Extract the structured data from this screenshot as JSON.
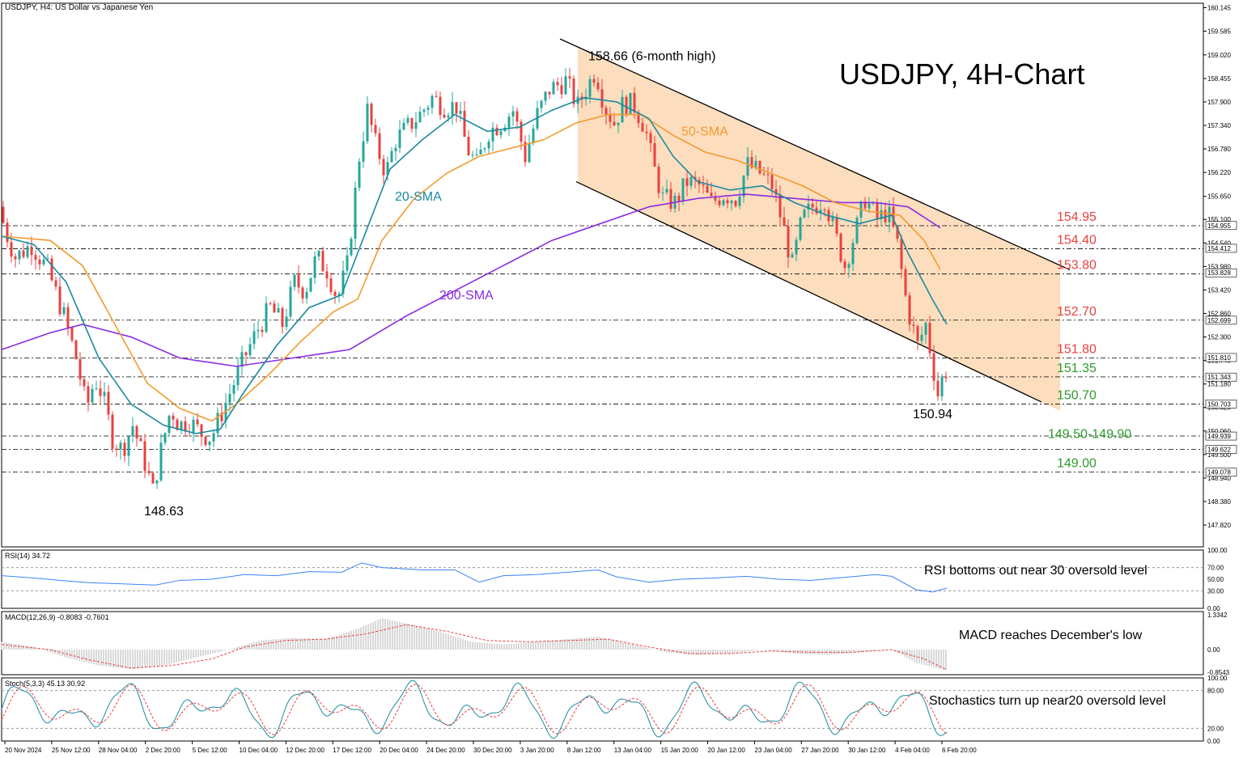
{
  "header": {
    "symbol_info": "USDJPY, H4:  US Dollar vs Japanese Yen",
    "big_title": "USDJPY, 4H-Chart"
  },
  "colors": {
    "bull": "#26a69a",
    "bear": "#e8413f",
    "sma20": "#1b8aa0",
    "sma50": "#f39a2e",
    "sma200": "#8a2be2",
    "channel_fill": "#fbd7b2",
    "level_red": "#e8413f",
    "level_green": "#2e9b2e",
    "rsi": "#3b82f6",
    "macd_signal": "#e8413f",
    "macd_hist": "#b0b0b0",
    "stoch_k": "#1b8aa0",
    "stoch_d": "#e8413f"
  },
  "chart_data": {
    "type": "candlestick",
    "price_axis": {
      "ylim": [
        147.3,
        160.25
      ],
      "ticks": [
        "160.145",
        "159.585",
        "159.020",
        "158.455",
        "157.900",
        "157.340",
        "156.780",
        "156.220",
        "155.650",
        "155.100",
        "154.540",
        "153.980",
        "153.420",
        "152.860",
        "152.300",
        "151.740",
        "151.180",
        "150.620",
        "150.060",
        "149.500",
        "148.940",
        "148.380",
        "147.820"
      ],
      "level_tags": [
        {
          "value": 154.955,
          "label": "154.955"
        },
        {
          "value": 154.412,
          "label": "154.412"
        },
        {
          "value": 153.828,
          "label": "153.828"
        },
        {
          "value": 152.699,
          "label": "152.699"
        },
        {
          "value": 151.81,
          "label": "151.810"
        },
        {
          "value": 151.343,
          "label": "151.343"
        },
        {
          "value": 150.703,
          "label": "150.703"
        },
        {
          "value": 149.939,
          "label": "149.939"
        },
        {
          "value": 149.622,
          "label": "149.622"
        },
        {
          "value": 149.078,
          "label": "149.078"
        }
      ]
    },
    "x_axis_labels": [
      "20 Nov 2024",
      "25 Nov 12:00",
      "28 Nov 04:00",
      "2 Dec 20:00",
      "5 Dec 12:00",
      "10 Dec 04:00",
      "12 Dec 20:00",
      "17 Dec 12:00",
      "20 Dec 04:00",
      "24 Dec 20:00",
      "30 Dec 20:00",
      "3 Jan 20:00",
      "8 Jan 12:00",
      "13 Jan 04:00",
      "15 Jan 20:00",
      "20 Jan 12:00",
      "23 Jan 04:00",
      "27 Jan 20:00",
      "30 Jan 12:00",
      "4 Feb 04:00",
      "6 Feb 20:00"
    ],
    "price_path": [
      [
        0,
        155.4
      ],
      [
        8,
        154.8
      ],
      [
        20,
        154.2
      ],
      [
        40,
        154.5
      ],
      [
        60,
        153.9
      ],
      [
        80,
        152.8
      ],
      [
        95,
        151.8
      ],
      [
        108,
        150.6
      ],
      [
        118,
        151.3
      ],
      [
        128,
        150.9
      ],
      [
        140,
        149.9
      ],
      [
        152,
        149.6
      ],
      [
        165,
        150.2
      ],
      [
        180,
        149.3
      ],
      [
        190,
        148.63
      ],
      [
        200,
        149.6
      ],
      [
        212,
        150.6
      ],
      [
        222,
        150.2
      ],
      [
        235,
        150.3
      ],
      [
        250,
        150.0
      ],
      [
        262,
        149.9
      ],
      [
        275,
        150.5
      ],
      [
        290,
        151.2
      ],
      [
        305,
        151.9
      ],
      [
        320,
        152.5
      ],
      [
        335,
        153.0
      ],
      [
        350,
        152.6
      ],
      [
        365,
        153.6
      ],
      [
        378,
        153.4
      ],
      [
        392,
        154.2
      ],
      [
        405,
        153.9
      ],
      [
        418,
        153.2
      ],
      [
        430,
        154.0
      ],
      [
        445,
        156.6
      ],
      [
        455,
        157.7
      ],
      [
        465,
        156.9
      ],
      [
        478,
        156.2
      ],
      [
        490,
        157.0
      ],
      [
        505,
        157.3
      ],
      [
        520,
        157.6
      ],
      [
        535,
        158.0
      ],
      [
        550,
        157.8
      ],
      [
        565,
        157.8
      ],
      [
        578,
        156.8
      ],
      [
        590,
        156.4
      ],
      [
        605,
        157.2
      ],
      [
        620,
        157.4
      ],
      [
        635,
        157.7
      ],
      [
        650,
        156.6
      ],
      [
        665,
        157.6
      ],
      [
        680,
        158.2
      ],
      [
        700,
        158.4
      ],
      [
        715,
        157.8
      ],
      [
        725,
        158.2
      ],
      [
        737,
        158.66
      ],
      [
        748,
        157.8
      ],
      [
        760,
        157.4
      ],
      [
        772,
        157.9
      ],
      [
        785,
        157.8
      ],
      [
        798,
        157.3
      ],
      [
        808,
        156.4
      ],
      [
        820,
        155.6
      ],
      [
        835,
        155.5
      ],
      [
        850,
        156.0
      ],
      [
        865,
        155.9
      ],
      [
        880,
        155.5
      ],
      [
        895,
        155.7
      ],
      [
        910,
        155.6
      ],
      [
        925,
        156.4
      ],
      [
        940,
        156.2
      ],
      [
        955,
        155.9
      ],
      [
        968,
        155.0
      ],
      [
        980,
        154.0
      ],
      [
        992,
        155.1
      ],
      [
        1005,
        155.4
      ],
      [
        1020,
        155.6
      ],
      [
        1032,
        154.8
      ],
      [
        1045,
        154.0
      ],
      [
        1058,
        154.8
      ],
      [
        1070,
        155.6
      ],
      [
        1085,
        155.1
      ],
      [
        1098,
        155.3
      ],
      [
        1110,
        154.5
      ],
      [
        1122,
        153.0
      ],
      [
        1135,
        152.1
      ],
      [
        1145,
        152.6
      ],
      [
        1152,
        151.8
      ],
      [
        1160,
        150.94
      ],
      [
        1168,
        151.5
      ]
    ],
    "sma20_path": [
      [
        0,
        154.7
      ],
      [
        40,
        154.5
      ],
      [
        80,
        153.6
      ],
      [
        120,
        151.8
      ],
      [
        160,
        150.7
      ],
      [
        200,
        150.2
      ],
      [
        240,
        150.0
      ],
      [
        270,
        150.1
      ],
      [
        300,
        151.0
      ],
      [
        340,
        152.1
      ],
      [
        380,
        153.0
      ],
      [
        420,
        153.3
      ],
      [
        450,
        154.8
      ],
      [
        480,
        156.3
      ],
      [
        520,
        157.0
      ],
      [
        560,
        157.6
      ],
      [
        600,
        157.2
      ],
      [
        640,
        157.3
      ],
      [
        680,
        157.7
      ],
      [
        720,
        158.0
      ],
      [
        760,
        157.9
      ],
      [
        800,
        157.5
      ],
      [
        830,
        156.6
      ],
      [
        860,
        156.0
      ],
      [
        900,
        155.8
      ],
      [
        940,
        155.9
      ],
      [
        980,
        155.5
      ],
      [
        1020,
        155.2
      ],
      [
        1060,
        155.0
      ],
      [
        1100,
        155.2
      ],
      [
        1120,
        154.3
      ],
      [
        1150,
        153.2
      ],
      [
        1168,
        152.6
      ]
    ],
    "sma50_path": [
      [
        0,
        154.7
      ],
      [
        60,
        154.6
      ],
      [
        100,
        154.0
      ],
      [
        140,
        152.6
      ],
      [
        180,
        151.2
      ],
      [
        220,
        150.6
      ],
      [
        260,
        150.3
      ],
      [
        290,
        150.7
      ],
      [
        330,
        151.4
      ],
      [
        370,
        152.2
      ],
      [
        410,
        152.9
      ],
      [
        440,
        153.2
      ],
      [
        470,
        154.6
      ],
      [
        510,
        155.6
      ],
      [
        550,
        156.2
      ],
      [
        590,
        156.6
      ],
      [
        630,
        156.8
      ],
      [
        670,
        157.0
      ],
      [
        710,
        157.4
      ],
      [
        750,
        157.6
      ],
      [
        790,
        157.6
      ],
      [
        830,
        157.1
      ],
      [
        870,
        156.7
      ],
      [
        910,
        156.5
      ],
      [
        950,
        156.2
      ],
      [
        990,
        155.9
      ],
      [
        1030,
        155.5
      ],
      [
        1070,
        155.3
      ],
      [
        1110,
        155.2
      ],
      [
        1140,
        154.6
      ],
      [
        1160,
        153.9
      ]
    ],
    "sma200_path": [
      [
        0,
        152.0
      ],
      [
        60,
        152.4
      ],
      [
        100,
        152.6
      ],
      [
        160,
        152.3
      ],
      [
        220,
        151.8
      ],
      [
        290,
        151.6
      ],
      [
        360,
        151.8
      ],
      [
        430,
        152.0
      ],
      [
        500,
        152.8
      ],
      [
        560,
        153.4
      ],
      [
        620,
        154.0
      ],
      [
        680,
        154.6
      ],
      [
        740,
        155.0
      ],
      [
        800,
        155.4
      ],
      [
        860,
        155.6
      ],
      [
        920,
        155.7
      ],
      [
        980,
        155.6
      ],
      [
        1040,
        155.5
      ],
      [
        1080,
        155.5
      ],
      [
        1120,
        155.4
      ],
      [
        1160,
        154.9
      ]
    ],
    "channel": {
      "upper_start": [
        690,
        159.4
      ],
      "upper_end": [
        1320,
        153.9
      ],
      "lower_start": [
        710,
        156.0
      ],
      "lower_end": [
        1285,
        150.75
      ]
    },
    "levels": [
      {
        "value": 154.95,
        "label": "154.95",
        "color_key": "level_red"
      },
      {
        "value": 154.4,
        "label": "154.40",
        "color_key": "level_red"
      },
      {
        "value": 153.8,
        "label": "153.80",
        "color_key": "level_red"
      },
      {
        "value": 152.7,
        "label": "152.70",
        "color_key": "level_red"
      },
      {
        "value": 151.8,
        "label": "151.80",
        "color_key": "level_red"
      },
      {
        "value": 151.35,
        "label": "151.35",
        "color_key": "level_green"
      },
      {
        "value": 150.7,
        "label": "150.70",
        "color_key": "level_green"
      },
      {
        "value": 149.78,
        "label": "149.50-149.90",
        "color_key": "level_green",
        "lines": [
          149.94,
          149.62
        ]
      },
      {
        "value": 149.08,
        "label": "149.00",
        "color_key": "level_green"
      }
    ],
    "annotations": [
      {
        "text": "158.66 (6-month high)",
        "value": 158.66,
        "x_index_pos": 737
      },
      {
        "text": "148.63",
        "value": 148.63,
        "x_index_pos": 190
      },
      {
        "text": "150.94",
        "value": 150.94,
        "x_index_pos": 1160
      },
      {
        "text": "20-SMA",
        "series": "sma20"
      },
      {
        "text": "50-SMA",
        "series": "sma50"
      },
      {
        "text": "200-SMA",
        "series": "sma200"
      }
    ],
    "rsi": {
      "title": "RSI(14) 34.72",
      "ticks": [
        "100.00",
        "70.00",
        "50.00",
        "30.00",
        "0.00"
      ],
      "ylim": [
        0,
        100
      ],
      "levels": [
        70,
        30
      ],
      "note": "RSI bottoms out near 30 oversold level",
      "path": [
        [
          0,
          56
        ],
        [
          40,
          52
        ],
        [
          80,
          47
        ],
        [
          110,
          44
        ],
        [
          150,
          42
        ],
        [
          190,
          40
        ],
        [
          220,
          48
        ],
        [
          260,
          50
        ],
        [
          300,
          58
        ],
        [
          340,
          56
        ],
        [
          380,
          63
        ],
        [
          420,
          62
        ],
        [
          445,
          78
        ],
        [
          470,
          70
        ],
        [
          520,
          66
        ],
        [
          560,
          66
        ],
        [
          590,
          45
        ],
        [
          620,
          56
        ],
        [
          660,
          58
        ],
        [
          700,
          62
        ],
        [
          737,
          66
        ],
        [
          760,
          54
        ],
        [
          800,
          45
        ],
        [
          840,
          50
        ],
        [
          880,
          52
        ],
        [
          920,
          55
        ],
        [
          960,
          50
        ],
        [
          1000,
          48
        ],
        [
          1040,
          53
        ],
        [
          1080,
          58
        ],
        [
          1100,
          55
        ],
        [
          1130,
          32
        ],
        [
          1150,
          28
        ],
        [
          1168,
          34.72
        ]
      ]
    },
    "macd": {
      "title": "MACD(12,26,9) -0.8083 -0.7601",
      "ticks": [
        "1.3342",
        "0.00",
        "-0.8543"
      ],
      "ylim": [
        -0.95,
        1.45
      ],
      "note": "MACD reaches December's low",
      "hist_path": [
        [
          0,
          0.3
        ],
        [
          40,
          0.1
        ],
        [
          80,
          -0.3
        ],
        [
          120,
          -0.6
        ],
        [
          160,
          -0.75
        ],
        [
          200,
          -0.6
        ],
        [
          240,
          -0.3
        ],
        [
          280,
          0.0
        ],
        [
          320,
          0.35
        ],
        [
          360,
          0.45
        ],
        [
          400,
          0.4
        ],
        [
          440,
          0.8
        ],
        [
          470,
          1.2
        ],
        [
          500,
          1.0
        ],
        [
          540,
          0.7
        ],
        [
          580,
          0.3
        ],
        [
          620,
          0.2
        ],
        [
          660,
          0.3
        ],
        [
          700,
          0.4
        ],
        [
          737,
          0.5
        ],
        [
          780,
          0.2
        ],
        [
          820,
          -0.1
        ],
        [
          860,
          -0.2
        ],
        [
          900,
          -0.15
        ],
        [
          940,
          0.0
        ],
        [
          980,
          -0.15
        ],
        [
          1020,
          -0.2
        ],
        [
          1060,
          -0.1
        ],
        [
          1100,
          0.0
        ],
        [
          1130,
          -0.5
        ],
        [
          1168,
          -0.81
        ]
      ],
      "signal_path": [
        [
          0,
          0.2
        ],
        [
          60,
          0.0
        ],
        [
          110,
          -0.4
        ],
        [
          160,
          -0.7
        ],
        [
          210,
          -0.6
        ],
        [
          260,
          -0.35
        ],
        [
          300,
          0.1
        ],
        [
          350,
          0.35
        ],
        [
          400,
          0.4
        ],
        [
          450,
          0.6
        ],
        [
          500,
          0.95
        ],
        [
          550,
          0.7
        ],
        [
          600,
          0.35
        ],
        [
          650,
          0.3
        ],
        [
          700,
          0.35
        ],
        [
          750,
          0.4
        ],
        [
          800,
          0.1
        ],
        [
          850,
          -0.15
        ],
        [
          900,
          -0.15
        ],
        [
          950,
          -0.05
        ],
        [
          1000,
          -0.1
        ],
        [
          1050,
          -0.1
        ],
        [
          1100,
          0.0
        ],
        [
          1140,
          -0.35
        ],
        [
          1168,
          -0.76
        ]
      ]
    },
    "stoch": {
      "title": "Stoch(5,3,3) 45.13 30.92",
      "ticks": [
        "100.00",
        "80.00",
        "20.00",
        "0.00"
      ],
      "ylim": [
        0,
        100
      ],
      "levels": [
        80,
        20
      ],
      "note": "Stochastics turn up near20 oversold level"
    }
  }
}
